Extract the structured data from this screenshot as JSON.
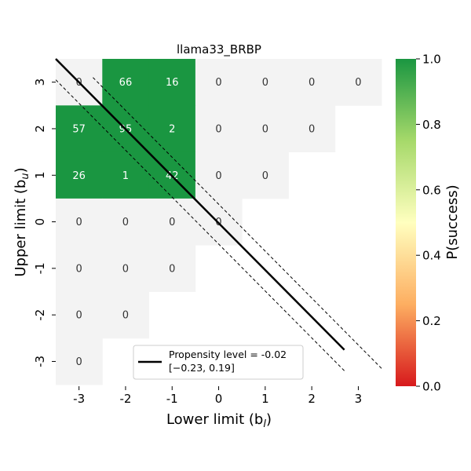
{
  "chart_data": {
    "type": "heatmap",
    "title": "llama33_BRBP",
    "xlabel": "Lower limit (b",
    "xlabel_sub": "l",
    "ylabel": "Upper limit (b",
    "ylabel_sub": "u",
    "x_ticks": [
      "-3",
      "-2",
      "-1",
      "0",
      "1",
      "2",
      "3"
    ],
    "y_ticks": [
      "3",
      "2",
      "1",
      "0",
      "-1",
      "-2",
      "-3"
    ],
    "cells": [
      {
        "x": -3,
        "y": 3,
        "label": "0",
        "p_success": null
      },
      {
        "x": -2,
        "y": 3,
        "label": "66",
        "p_success": 1.0
      },
      {
        "x": -1,
        "y": 3,
        "label": "16",
        "p_success": 1.0
      },
      {
        "x": 0,
        "y": 3,
        "label": "0",
        "p_success": null
      },
      {
        "x": 1,
        "y": 3,
        "label": "0",
        "p_success": null
      },
      {
        "x": 2,
        "y": 3,
        "label": "0",
        "p_success": null
      },
      {
        "x": 3,
        "y": 3,
        "label": "0",
        "p_success": null
      },
      {
        "x": -3,
        "y": 2,
        "label": "57",
        "p_success": 1.0
      },
      {
        "x": -2,
        "y": 2,
        "label": "95",
        "p_success": 1.0
      },
      {
        "x": -1,
        "y": 2,
        "label": "2",
        "p_success": 1.0
      },
      {
        "x": 0,
        "y": 2,
        "label": "0",
        "p_success": null
      },
      {
        "x": 1,
        "y": 2,
        "label": "0",
        "p_success": null
      },
      {
        "x": 2,
        "y": 2,
        "label": "0",
        "p_success": null
      },
      {
        "x": -3,
        "y": 1,
        "label": "26",
        "p_success": 1.0
      },
      {
        "x": -2,
        "y": 1,
        "label": "1",
        "p_success": 1.0
      },
      {
        "x": -1,
        "y": 1,
        "label": "42",
        "p_success": 1.0
      },
      {
        "x": 0,
        "y": 1,
        "label": "0",
        "p_success": null
      },
      {
        "x": 1,
        "y": 1,
        "label": "0",
        "p_success": null
      },
      {
        "x": -3,
        "y": 0,
        "label": "0",
        "p_success": null
      },
      {
        "x": -2,
        "y": 0,
        "label": "0",
        "p_success": null
      },
      {
        "x": -1,
        "y": 0,
        "label": "0",
        "p_success": null
      },
      {
        "x": 0,
        "y": 0,
        "label": "0",
        "p_success": null
      },
      {
        "x": -3,
        "y": -1,
        "label": "0",
        "p_success": null
      },
      {
        "x": -2,
        "y": -1,
        "label": "0",
        "p_success": null
      },
      {
        "x": -1,
        "y": -1,
        "label": "0",
        "p_success": null
      },
      {
        "x": -3,
        "y": -2,
        "label": "0",
        "p_success": null
      },
      {
        "x": -2,
        "y": -2,
        "label": "0",
        "p_success": null
      },
      {
        "x": -3,
        "y": -3,
        "label": "0",
        "p_success": null
      }
    ],
    "lines": {
      "main": {
        "x1": -3.5,
        "y1": 3.5,
        "x2": 2.7,
        "y2": -2.75
      },
      "lower_ci": {
        "x1": -3.5,
        "y1": 3.05,
        "x2": 2.7,
        "y2": -3.2
      },
      "upper_ci": {
        "x1": -2.7,
        "y1": 3.1,
        "x2": 3.5,
        "y2": -3.15
      }
    },
    "legend": {
      "line1": "Propensity level = -0.02",
      "line2": "[−0.23, 0.19]",
      "placement": "bottom-center"
    },
    "colorbar": {
      "label": "P(success)",
      "ticks": [
        "0.0",
        "0.2",
        "0.4",
        "0.6",
        "0.8",
        "1.0"
      ],
      "range": [
        0,
        1
      ]
    },
    "colors": {
      "success": "#1a9641",
      "empty": "#f3f3f3",
      "label_light": "#ffffff",
      "label_dark": "#333333"
    }
  }
}
